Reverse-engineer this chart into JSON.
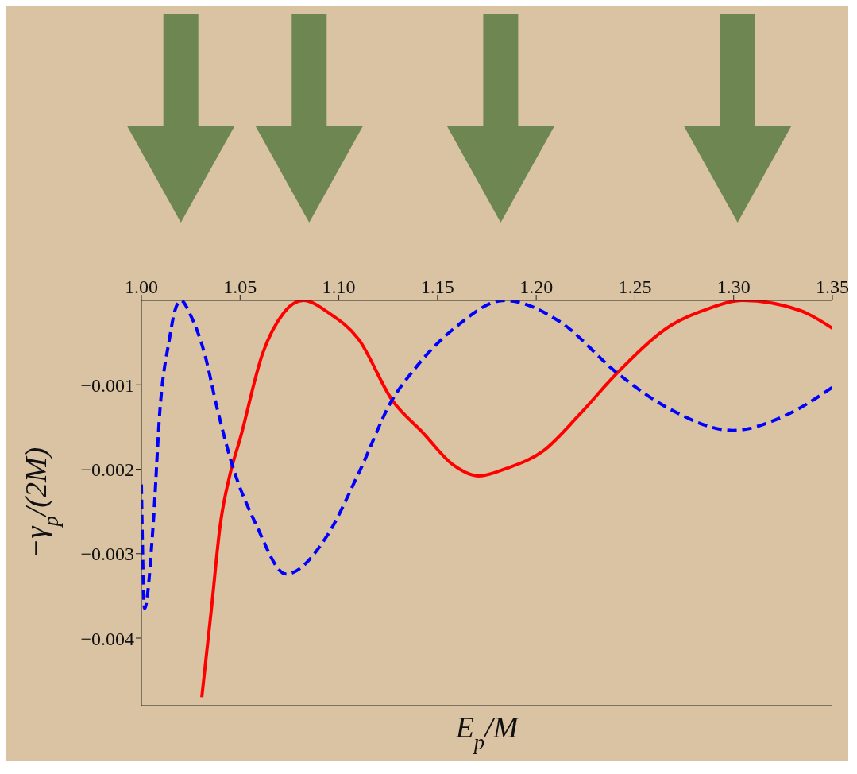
{
  "chart_data": {
    "type": "line",
    "xlabel": "E$_{p}$/M",
    "ylabel": "−γ$_{p}$/(2M)",
    "xlim": [
      1.0,
      1.35
    ],
    "xticks": [
      {
        "value": 1.0,
        "label": "1.00"
      },
      {
        "value": 1.05,
        "label": "1.05"
      },
      {
        "value": 1.1,
        "label": "1.10"
      },
      {
        "value": 1.15,
        "label": "1.15"
      },
      {
        "value": 1.2,
        "label": "1.20"
      },
      {
        "value": 1.25,
        "label": "1.25"
      },
      {
        "value": 1.3,
        "label": "1.30"
      },
      {
        "value": 1.35,
        "label": "1.35"
      }
    ],
    "ylim": [
      -0.0048,
      0
    ],
    "yticks": [
      -0.004,
      -0.003,
      -0.002,
      -0.001
    ],
    "tick_labels": "xy",
    "series": [
      {
        "color": "#ff0000",
        "line_style": "solid",
        "x": [
          1.0306,
          1.0354,
          1.04,
          1.045,
          1.05,
          1.0614,
          1.072,
          1.082,
          1.095,
          1.11,
          1.127,
          1.1427,
          1.158,
          1.171,
          1.185,
          1.2037,
          1.222,
          1.241,
          1.2687,
          1.287,
          1.3045,
          1.3337,
          1.35
        ],
        "values": [
          -0.0047,
          -0.00367,
          -0.00265,
          -0.00205,
          -0.00164,
          -0.00063,
          -0.00015,
          0,
          -0.00015,
          -0.00046,
          -0.00118,
          -0.00157,
          -0.00195,
          -0.00208,
          -0.00199,
          -0.00178,
          -0.00135,
          -0.00086,
          -0.00029,
          -0.0001,
          0,
          -0.00012,
          -0.00033
        ]
      },
      {
        "color": "#0000ff",
        "line_style": "dashed",
        "x": [
          1.0,
          1.0016,
          1.006,
          1.0094,
          1.0142,
          1.017,
          1.02,
          1.025,
          1.032,
          1.0386,
          1.0459,
          1.058,
          1.0733,
          1.094,
          1.11,
          1.127,
          1.1378,
          1.159,
          1.184,
          1.2118,
          1.241,
          1.2687,
          1.2996,
          1.3256,
          1.35
        ],
        "values": [
          -0.00218,
          -0.00365,
          -0.00265,
          -0.0013,
          -0.00046,
          -0.00012,
          0,
          -0.00018,
          -0.00063,
          -0.0013,
          -0.00194,
          -0.00265,
          -0.00324,
          -0.00279,
          -0.00205,
          -0.00118,
          -0.00083,
          -0.00032,
          0,
          -0.00025,
          -0.00086,
          -0.0013,
          -0.00154,
          -0.00137,
          -0.00103
        ]
      }
    ]
  }
}
